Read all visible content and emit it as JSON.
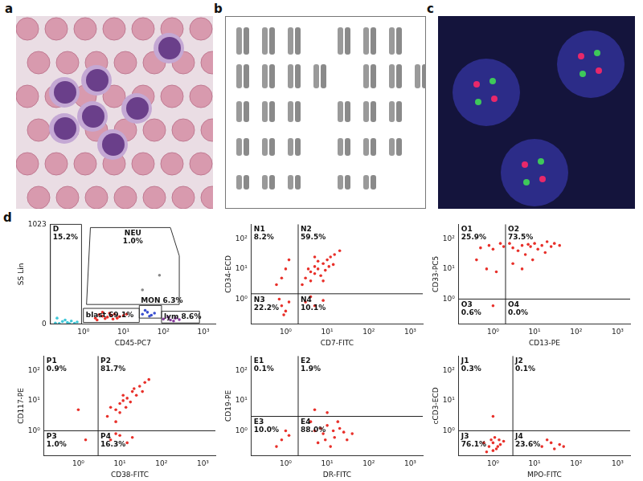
{
  "panel_labels": [
    "a",
    "b",
    "c",
    "d"
  ],
  "chart_data": [
    {
      "type": "scatter",
      "log": "x",
      "grid": false,
      "x_label": "CD45-PC7",
      "y_label": "SS Lin",
      "xlim": [
        0.15,
        2000
      ],
      "ylim": [
        0,
        1023
      ],
      "xticks": [
        {
          "value": 1,
          "label": "10⁰"
        },
        {
          "value": 10,
          "label": "10¹"
        },
        {
          "value": 100,
          "label": "10²"
        },
        {
          "value": 1000,
          "label": "10³"
        }
      ],
      "yticks": [
        0,
        1023
      ],
      "gates": [
        {
          "name": "D",
          "percent": "15.2%",
          "polygon": [
            [
              0.15,
              0
            ],
            [
              0.15,
              1023
            ],
            [
              0.9,
              1023
            ],
            [
              0.9,
              0
            ]
          ]
        },
        {
          "name": "NEU",
          "percent": "1.0%",
          "polygon": [
            [
              1.2,
              200
            ],
            [
              1.5,
              990
            ],
            [
              150,
              990
            ],
            [
              250,
              700
            ],
            [
              250,
              200
            ]
          ]
        },
        {
          "name": "blast",
          "percent": "69.1%",
          "polygon": [
            [
              1,
              15
            ],
            [
              1,
              160
            ],
            [
              25,
              160
            ],
            [
              25,
              15
            ]
          ]
        },
        {
          "name": "MON",
          "percent": "6.3%",
          "polygon": [
            [
              25,
              60
            ],
            [
              25,
              190
            ],
            [
              90,
              190
            ],
            [
              90,
              60
            ]
          ]
        },
        {
          "name": "lym",
          "percent": "8.6%",
          "polygon": [
            [
              90,
              10
            ],
            [
              90,
              130
            ],
            [
              800,
              130
            ],
            [
              800,
              10
            ]
          ]
        }
      ],
      "series": [
        {
          "color": "#40c8d8",
          "x": [
            0.2,
            0.3,
            0.25,
            0.4,
            0.5,
            0.35,
            0.6,
            0.22,
            0.7,
            0.45
          ],
          "values": [
            10,
            25,
            5,
            15,
            30,
            40,
            8,
            60,
            20,
            3
          ]
        },
        {
          "color": "#e8302a",
          "x": [
            2,
            3,
            4,
            5,
            3.5,
            6,
            2.5,
            8,
            4.5,
            7,
            3,
            10,
            5.5,
            2.2,
            12
          ],
          "values": [
            60,
            80,
            70,
            90,
            55,
            100,
            95,
            75,
            110,
            60,
            120,
            85,
            50,
            40,
            100
          ]
        },
        {
          "color": "#3a4fd0",
          "x": [
            30,
            40,
            50,
            35,
            60,
            45
          ],
          "values": [
            100,
            120,
            90,
            140,
            110,
            80
          ]
        },
        {
          "color": "#8a3aa0",
          "x": [
            100,
            150,
            200,
            130,
            250,
            180
          ],
          "values": [
            50,
            40,
            60,
            70,
            45,
            30
          ]
        },
        {
          "color": "#888888",
          "x": [
            30,
            80
          ],
          "values": [
            350,
            500
          ]
        }
      ]
    },
    {
      "type": "scatter",
      "log": true,
      "grid": false,
      "x_label": "CD7-FITC",
      "y_label": "CD34-ECD",
      "xlim": [
        0.15,
        2000
      ],
      "ylim": [
        0.15,
        300
      ],
      "xticks": [
        {
          "value": 1,
          "label": "10⁰"
        },
        {
          "value": 10,
          "label": "10¹"
        },
        {
          "value": 100,
          "label": "10²"
        },
        {
          "value": 1000,
          "label": "10³"
        }
      ],
      "yticks": [
        {
          "value": 1,
          "label": "10⁰"
        },
        {
          "value": 10,
          "label": "10¹"
        },
        {
          "value": 100,
          "label": "10²"
        }
      ],
      "gate": {
        "x": 2,
        "y": 1.5
      },
      "quadrants": [
        {
          "name": "N1",
          "percent": "8.2%"
        },
        {
          "name": "N2",
          "percent": "59.5%"
        },
        {
          "name": "N3",
          "percent": "22.2%"
        },
        {
          "name": "N4",
          "percent": "10.1%"
        }
      ],
      "series": [
        {
          "color": "#e8302a",
          "x": [
            3,
            4,
            5,
            6,
            8,
            10,
            7,
            12,
            5,
            9,
            15,
            6,
            4,
            11,
            3.5,
            20,
            8,
            14,
            2.5,
            5,
            0.8,
            1,
            0.6,
            1.2,
            0.8,
            1,
            0.7,
            1.2,
            0.9,
            3,
            5,
            4,
            8
          ],
          "values": [
            5,
            8,
            12,
            10,
            15,
            20,
            6,
            25,
            7,
            9,
            30,
            18,
            4,
            12,
            10,
            40,
            4,
            14,
            3,
            25,
            5,
            10,
            3,
            20,
            0.6,
            0.4,
            1,
            0.8,
            0.3,
            0.8,
            0.6,
            1.2,
            0.9
          ]
        }
      ]
    },
    {
      "type": "scatter",
      "log": true,
      "grid": false,
      "x_label": "CD13-PE",
      "y_label": "CD33-PC5",
      "xlim": [
        0.15,
        2000
      ],
      "ylim": [
        0.15,
        300
      ],
      "xticks": [
        {
          "value": 1,
          "label": "10⁰"
        },
        {
          "value": 10,
          "label": "10¹"
        },
        {
          "value": 100,
          "label": "10²"
        },
        {
          "value": 1000,
          "label": "10³"
        }
      ],
      "yticks": [
        {
          "value": 1,
          "label": "10⁰"
        },
        {
          "value": 10,
          "label": "10¹"
        },
        {
          "value": 100,
          "label": "10²"
        }
      ],
      "gate": {
        "x": 2,
        "y": 1
      },
      "quadrants": [
        {
          "name": "O1",
          "percent": "25.9%"
        },
        {
          "name": "O2",
          "percent": "73.5%"
        },
        {
          "name": "O3",
          "percent": "0.6%"
        },
        {
          "name": "O4",
          "percent": "0.0%"
        }
      ],
      "series": [
        {
          "color": "#e8302a",
          "x": [
            3,
            5,
            8,
            10,
            15,
            20,
            4,
            6,
            12,
            25,
            30,
            7,
            9,
            3,
            5,
            18,
            40,
            2.5,
            0.5,
            0.8,
            1,
            1.5,
            0.7,
            1.2,
            0.4,
            1.8,
            1
          ],
          "values": [
            50,
            60,
            55,
            70,
            60,
            80,
            40,
            30,
            45,
            55,
            70,
            65,
            20,
            15,
            10,
            35,
            60,
            70,
            50,
            60,
            45,
            70,
            10,
            8,
            20,
            55,
            0.6
          ]
        }
      ]
    },
    {
      "type": "scatter",
      "log": true,
      "grid": false,
      "x_label": "CD38-FITC",
      "y_label": "CD117-PE",
      "xlim": [
        0.15,
        2000
      ],
      "ylim": [
        0.15,
        300
      ],
      "xticks": [
        {
          "value": 1,
          "label": "10⁰"
        },
        {
          "value": 10,
          "label": "10¹"
        },
        {
          "value": 100,
          "label": "10²"
        },
        {
          "value": 1000,
          "label": "10³"
        }
      ],
      "yticks": [
        {
          "value": 1,
          "label": "10⁰"
        },
        {
          "value": 10,
          "label": "10¹"
        },
        {
          "value": 100,
          "label": "10²"
        }
      ],
      "gate": {
        "x": 3,
        "y": 1
      },
      "quadrants": [
        {
          "name": "P1",
          "percent": "0.9%"
        },
        {
          "name": "P2",
          "percent": "81.7%"
        },
        {
          "name": "P3",
          "percent": "1.0%"
        },
        {
          "name": "P4",
          "percent": "16.3%"
        }
      ],
      "series": [
        {
          "color": "#e8302a",
          "x": [
            5,
            8,
            10,
            12,
            15,
            20,
            25,
            30,
            8,
            10,
            18,
            40,
            6,
            14,
            22,
            35,
            50,
            12,
            6,
            10,
            15,
            8,
            20,
            1,
            1.5
          ],
          "values": [
            3,
            5,
            8,
            10,
            12,
            20,
            15,
            30,
            2,
            4,
            9,
            40,
            6,
            6,
            25,
            20,
            50,
            15,
            0.5,
            0.7,
            0.4,
            0.8,
            0.6,
            5,
            0.5
          ]
        }
      ]
    },
    {
      "type": "scatter",
      "log": true,
      "grid": false,
      "x_label": "DR-FITC",
      "y_label": "CD19-PE",
      "xlim": [
        0.15,
        2000
      ],
      "ylim": [
        0.15,
        300
      ],
      "xticks": [
        {
          "value": 1,
          "label": "10⁰"
        },
        {
          "value": 10,
          "label": "10¹"
        },
        {
          "value": 100,
          "label": "10²"
        },
        {
          "value": 1000,
          "label": "10³"
        }
      ],
      "yticks": [
        {
          "value": 1,
          "label": "10⁰"
        },
        {
          "value": 10,
          "label": "10¹"
        },
        {
          "value": 100,
          "label": "10²"
        }
      ],
      "gate": {
        "x": 2,
        "y": 3
      },
      "quadrants": [
        {
          "name": "E1",
          "percent": "0.1%"
        },
        {
          "name": "E2",
          "percent": "1.9%"
        },
        {
          "name": "E3",
          "percent": "10.0%"
        },
        {
          "name": "E4",
          "percent": "88.0%"
        }
      ],
      "series": [
        {
          "color": "#e8302a",
          "x": [
            5,
            8,
            10,
            15,
            20,
            6,
            12,
            25,
            30,
            4,
            18,
            9,
            7,
            40,
            14,
            0.8,
            1,
            0.6,
            1.2,
            5,
            10
          ],
          "values": [
            1,
            0.8,
            1.5,
            0.6,
            1.2,
            0.4,
            0.3,
            0.9,
            0.5,
            2,
            2,
            0.5,
            1.2,
            0.8,
            1,
            0.5,
            1,
            0.3,
            0.7,
            5,
            4
          ]
        }
      ]
    },
    {
      "type": "scatter",
      "log": true,
      "grid": false,
      "x_label": "MPO-FITC",
      "y_label": "cCD3-ECD",
      "xlim": [
        0.15,
        2000
      ],
      "ylim": [
        0.15,
        300
      ],
      "xticks": [
        {
          "value": 1,
          "label": "10⁰"
        },
        {
          "value": 10,
          "label": "10¹"
        },
        {
          "value": 100,
          "label": "10²"
        },
        {
          "value": 1000,
          "label": "10³"
        }
      ],
      "yticks": [
        {
          "value": 1,
          "label": "10⁰"
        },
        {
          "value": 10,
          "label": "10¹"
        },
        {
          "value": 100,
          "label": "10²"
        }
      ],
      "gate": {
        "x": 3,
        "y": 1
      },
      "quadrants": [
        {
          "name": "J1",
          "percent": "0.3%"
        },
        {
          "name": "J2",
          "percent": "0.1%"
        },
        {
          "name": "J3",
          "percent": "76.1%"
        },
        {
          "name": "J4",
          "percent": "23.6%"
        }
      ],
      "series": [
        {
          "color": "#e8302a",
          "x": [
            0.8,
            1,
            1.2,
            0.9,
            1.5,
            0.7,
            1.1,
            1.3,
            0.6,
            1,
            1.8,
            1.4,
            15,
            25,
            30,
            40,
            20,
            50,
            1
          ],
          "values": [
            0.3,
            0.4,
            0.25,
            0.5,
            0.35,
            0.2,
            0.6,
            0.3,
            0.4,
            0.22,
            0.45,
            0.5,
            0.3,
            0.4,
            0.25,
            0.35,
            0.5,
            0.3,
            3
          ]
        }
      ]
    }
  ]
}
